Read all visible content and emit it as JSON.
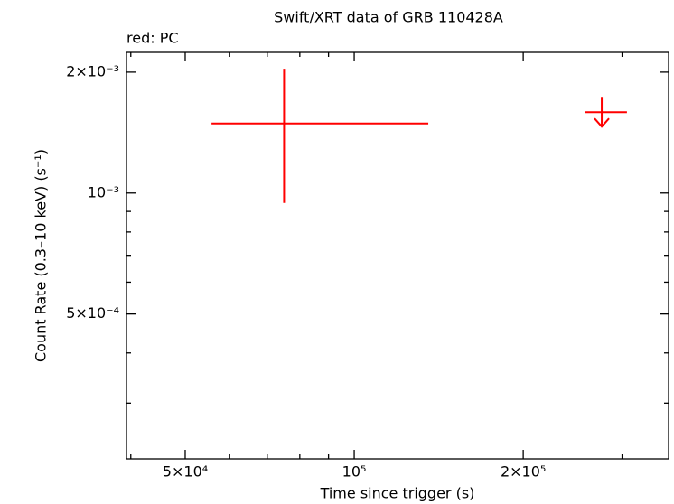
{
  "chart_data": {
    "type": "scatter",
    "title": "Swift/XRT data of GRB 110428A",
    "subtitle": "red: PC",
    "xlabel": "Time since trigger (s)",
    "ylabel": "Count Rate (0.3–10 keV) (s⁻¹)",
    "xscale": "log",
    "yscale": "log",
    "xlim": [
      39300,
      363000
    ],
    "ylim": [
      0.000218,
      0.00224
    ],
    "xticks": [
      {
        "value": 50000,
        "label": "5×10⁴"
      },
      {
        "value": 100000,
        "label": "10⁵"
      },
      {
        "value": 200000,
        "label": "2×10⁵"
      }
    ],
    "xminor_ticks": [
      40000,
      60000,
      70000,
      80000,
      90000,
      300000
    ],
    "yticks": [
      {
        "value": 0.0005,
        "label": "5×10⁻⁴"
      },
      {
        "value": 0.001,
        "label": "10⁻³"
      },
      {
        "value": 0.002,
        "label": "2×10⁻³"
      }
    ],
    "yminor_ticks": [
      0.0003,
      0.0004,
      0.0006,
      0.0007,
      0.0008,
      0.0009
    ],
    "series": [
      {
        "color": "#ff0000",
        "x": [
          75000
        ],
        "x_low": [
          55700
        ],
        "x_high": [
          135500
        ],
        "y": [
          0.00149
        ],
        "y_low": [
          0.000945
        ],
        "y_high": [
          0.00204
        ]
      }
    ],
    "upper_limits": {
      "color": "#ff0000",
      "x": [
        276000
      ],
      "x_low": [
        258000
      ],
      "x_high": [
        306000
      ],
      "y": [
        0.00159
      ]
    }
  }
}
